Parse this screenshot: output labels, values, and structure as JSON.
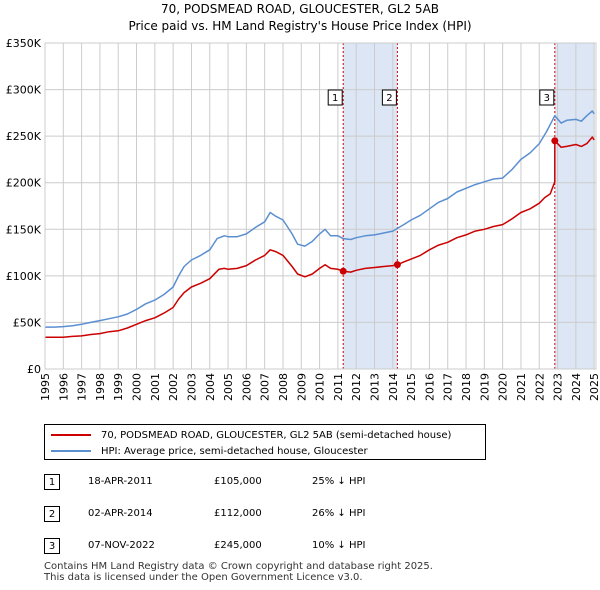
{
  "title_line1": "70, PODSMEAD ROAD, GLOUCESTER, GL2 5AB",
  "title_line2": "Price paid vs. HM Land Registry's House Price Index (HPI)",
  "colors": {
    "price": "#cc0000",
    "hpi": "#5b8fd0",
    "shade": "#dce6f5",
    "marker_line": "#cc0000"
  },
  "chart_data": {
    "type": "line",
    "title": "Price paid vs. HM Land Registry's House Price Index (HPI)",
    "xlim": [
      1995,
      2025.1
    ],
    "ylim": [
      0,
      350000
    ],
    "y_ticks": [
      0,
      50000,
      100000,
      150000,
      200000,
      250000,
      300000,
      350000
    ],
    "y_tick_labels": [
      "£0",
      "£50K",
      "£100K",
      "£150K",
      "£200K",
      "£250K",
      "£300K",
      "£350K"
    ],
    "x_ticks": [
      1995,
      1996,
      1997,
      1998,
      1999,
      2000,
      2001,
      2002,
      2003,
      2004,
      2005,
      2006,
      2007,
      2008,
      2009,
      2010,
      2011,
      2012,
      2013,
      2014,
      2015,
      2016,
      2017,
      2018,
      2019,
      2020,
      2021,
      2022,
      2023,
      2024,
      2025
    ],
    "x_tick_labels": [
      "1995",
      "1996",
      "1997",
      "1998",
      "1999",
      "2000",
      "2001",
      "2002",
      "2003",
      "2004",
      "2005",
      "2006",
      "2007",
      "2008",
      "2009",
      "2010",
      "2011",
      "2012",
      "2013",
      "2014",
      "2015",
      "2016",
      "2017",
      "2018",
      "2019",
      "2020",
      "2021",
      "2022",
      "2023",
      "2024",
      "2025"
    ],
    "grid": true,
    "series": [
      {
        "name": "70, PODSMEAD ROAD, GLOUCESTER, GL2 5AB (semi-detached house)",
        "color": "#cc0000",
        "points": [
          [
            1995,
            34000
          ],
          [
            1995.5,
            34000
          ],
          [
            1996,
            34000
          ],
          [
            1996.5,
            35000
          ],
          [
            1997,
            35500
          ],
          [
            1997.5,
            37000
          ],
          [
            1998,
            38000
          ],
          [
            1998.5,
            40000
          ],
          [
            1999,
            41000
          ],
          [
            1999.5,
            44000
          ],
          [
            2000,
            48000
          ],
          [
            2000.5,
            52000
          ],
          [
            2001,
            55000
          ],
          [
            2001.5,
            60000
          ],
          [
            2002,
            66000
          ],
          [
            2002.3,
            75000
          ],
          [
            2002.6,
            82000
          ],
          [
            2003,
            88000
          ],
          [
            2003.5,
            92000
          ],
          [
            2004,
            97000
          ],
          [
            2004.5,
            107000
          ],
          [
            2004.8,
            108000
          ],
          [
            2005,
            107000
          ],
          [
            2005.5,
            108000
          ],
          [
            2006,
            111000
          ],
          [
            2006.5,
            117000
          ],
          [
            2007,
            122000
          ],
          [
            2007.3,
            128000
          ],
          [
            2007.6,
            126000
          ],
          [
            2008,
            122000
          ],
          [
            2008.5,
            110000
          ],
          [
            2008.8,
            102000
          ],
          [
            2009.2,
            99000
          ],
          [
            2009.6,
            102000
          ],
          [
            2010,
            108000
          ],
          [
            2010.3,
            112000
          ],
          [
            2010.6,
            108000
          ],
          [
            2011,
            107000
          ],
          [
            2011.29,
            105000
          ],
          [
            2011.7,
            104000
          ],
          [
            2012,
            106000
          ],
          [
            2012.5,
            108000
          ],
          [
            2013,
            109000
          ],
          [
            2013.5,
            110000
          ],
          [
            2014,
            111000
          ],
          [
            2014.25,
            112000
          ],
          [
            2014.6,
            115000
          ],
          [
            2015,
            118000
          ],
          [
            2015.5,
            122000
          ],
          [
            2016,
            128000
          ],
          [
            2016.5,
            133000
          ],
          [
            2017,
            136000
          ],
          [
            2017.5,
            141000
          ],
          [
            2018,
            144000
          ],
          [
            2018.5,
            148000
          ],
          [
            2019,
            150000
          ],
          [
            2019.5,
            153000
          ],
          [
            2020,
            155000
          ],
          [
            2020.5,
            161000
          ],
          [
            2021,
            168000
          ],
          [
            2021.5,
            172000
          ],
          [
            2022,
            178000
          ],
          [
            2022.3,
            184000
          ],
          [
            2022.6,
            188000
          ],
          [
            2022.85,
            201000
          ],
          [
            2022.85,
            245000
          ],
          [
            2023.2,
            238000
          ],
          [
            2023.5,
            239000
          ],
          [
            2024,
            241000
          ],
          [
            2024.3,
            239000
          ],
          [
            2024.6,
            242000
          ],
          [
            2024.9,
            249000
          ],
          [
            2025,
            246000
          ]
        ]
      },
      {
        "name": "HPI: Average price, semi-detached house, Gloucester",
        "color": "#5b8fd0",
        "points": [
          [
            1995,
            45000
          ],
          [
            1995.5,
            45000
          ],
          [
            1996,
            45500
          ],
          [
            1996.5,
            46500
          ],
          [
            1997,
            48000
          ],
          [
            1997.5,
            50000
          ],
          [
            1998,
            52000
          ],
          [
            1998.5,
            54000
          ],
          [
            1999,
            56000
          ],
          [
            1999.5,
            59000
          ],
          [
            2000,
            64000
          ],
          [
            2000.5,
            70000
          ],
          [
            2001,
            74000
          ],
          [
            2001.5,
            80000
          ],
          [
            2002,
            88000
          ],
          [
            2002.3,
            100000
          ],
          [
            2002.6,
            110000
          ],
          [
            2003,
            117000
          ],
          [
            2003.5,
            122000
          ],
          [
            2004,
            128000
          ],
          [
            2004.4,
            140000
          ],
          [
            2004.8,
            143000
          ],
          [
            2005,
            142000
          ],
          [
            2005.5,
            142000
          ],
          [
            2006,
            145000
          ],
          [
            2006.5,
            152000
          ],
          [
            2007,
            158000
          ],
          [
            2007.3,
            168000
          ],
          [
            2007.6,
            164000
          ],
          [
            2008,
            160000
          ],
          [
            2008.5,
            145000
          ],
          [
            2008.8,
            134000
          ],
          [
            2009.2,
            132000
          ],
          [
            2009.6,
            137000
          ],
          [
            2010,
            145000
          ],
          [
            2010.3,
            150000
          ],
          [
            2010.6,
            143000
          ],
          [
            2011,
            143000
          ],
          [
            2011.29,
            140000
          ],
          [
            2011.7,
            139000
          ],
          [
            2012,
            141000
          ],
          [
            2012.5,
            143000
          ],
          [
            2013,
            144000
          ],
          [
            2013.5,
            146000
          ],
          [
            2014,
            148000
          ],
          [
            2014.25,
            151000
          ],
          [
            2014.6,
            155000
          ],
          [
            2015,
            160000
          ],
          [
            2015.5,
            165000
          ],
          [
            2016,
            172000
          ],
          [
            2016.5,
            179000
          ],
          [
            2017,
            183000
          ],
          [
            2017.5,
            190000
          ],
          [
            2018,
            194000
          ],
          [
            2018.5,
            198000
          ],
          [
            2019,
            201000
          ],
          [
            2019.5,
            204000
          ],
          [
            2020,
            205000
          ],
          [
            2020.5,
            214000
          ],
          [
            2021,
            225000
          ],
          [
            2021.5,
            232000
          ],
          [
            2022,
            242000
          ],
          [
            2022.4,
            255000
          ],
          [
            2022.85,
            272000
          ],
          [
            2023.2,
            264000
          ],
          [
            2023.5,
            267000
          ],
          [
            2024,
            268000
          ],
          [
            2024.3,
            266000
          ],
          [
            2024.6,
            272000
          ],
          [
            2024.9,
            277000
          ],
          [
            2025,
            274000
          ]
        ]
      }
    ],
    "sales": [
      {
        "label": "1",
        "x": 2011.29,
        "price": 105000
      },
      {
        "label": "2",
        "x": 2014.25,
        "price": 112000
      },
      {
        "label": "3",
        "x": 2022.85,
        "price": 245000
      }
    ],
    "shaded_ranges": [
      [
        2011.29,
        2014.25
      ],
      [
        2022.85,
        2025
      ]
    ]
  },
  "legend": {
    "price": "70, PODSMEAD ROAD, GLOUCESTER, GL2 5AB (semi-detached house)",
    "hpi": "HPI: Average price, semi-detached house, Gloucester"
  },
  "sales_table": [
    {
      "num": "1",
      "date": "18-APR-2011",
      "price": "£105,000",
      "hpi": "25% ↓ HPI"
    },
    {
      "num": "2",
      "date": "02-APR-2014",
      "price": "£112,000",
      "hpi": "26% ↓ HPI"
    },
    {
      "num": "3",
      "date": "07-NOV-2022",
      "price": "£245,000",
      "hpi": "10% ↓ HPI"
    }
  ],
  "footer_line1": "Contains HM Land Registry data © Crown copyright and database right 2025.",
  "footer_line2": "This data is licensed under the Open Government Licence v3.0."
}
